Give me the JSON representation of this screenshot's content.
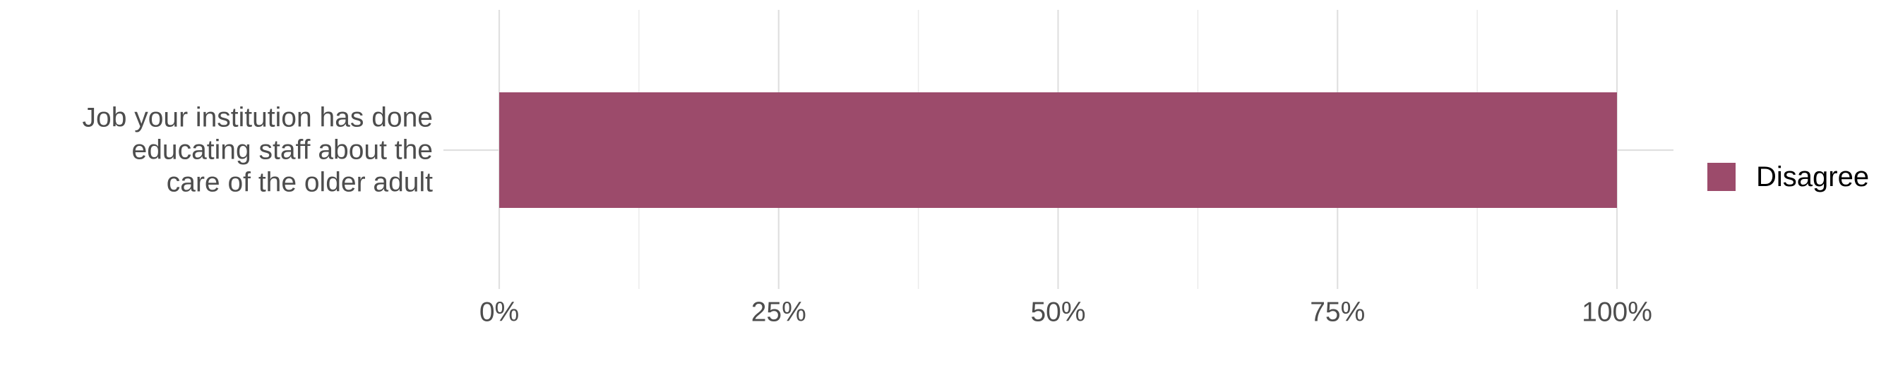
{
  "chart_data": {
    "type": "bar",
    "orientation": "horizontal",
    "stacked": true,
    "categories": [
      "Job your institution has done educating staff about the care of the older adult"
    ],
    "category_label_lines": [
      [
        "Job your institution has done",
        "educating staff about the",
        "care of the older adult"
      ]
    ],
    "series": [
      {
        "name": "Disagree",
        "values": [
          100
        ],
        "color": "#9c4b6b"
      }
    ],
    "xlim": [
      0,
      100
    ],
    "x_ticks": [
      0,
      25,
      50,
      75,
      100
    ],
    "x_tick_labels": [
      "0%",
      "25%",
      "50%",
      "75%",
      "100%"
    ],
    "x_minor_ticks": [
      12.5,
      37.5,
      62.5,
      87.5
    ],
    "grid": true,
    "legend_position": "right",
    "title": "",
    "xlabel": "",
    "ylabel": ""
  }
}
